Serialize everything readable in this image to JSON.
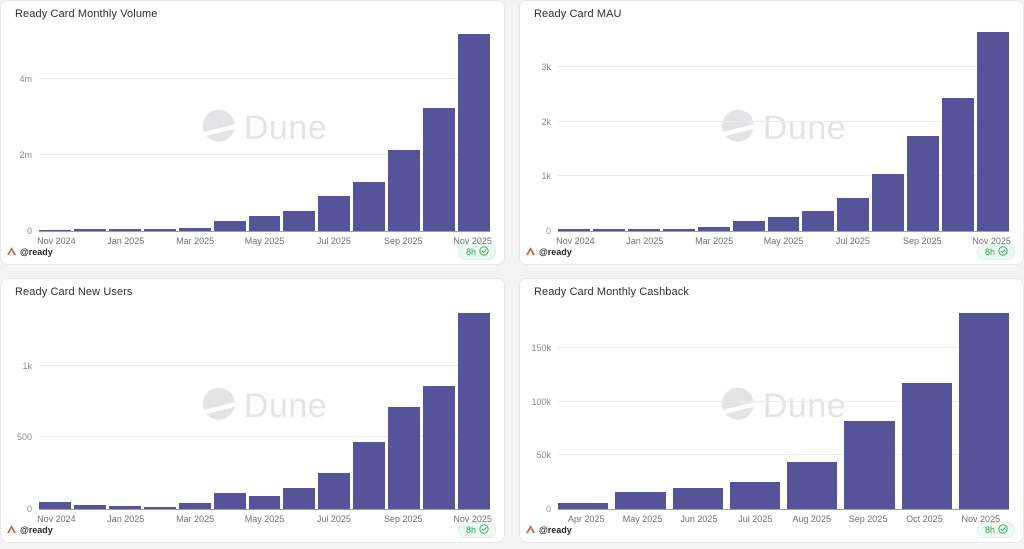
{
  "page": {
    "background": "#f4f4f5",
    "watermark_label": "Dune"
  },
  "colors": {
    "bar": "#56539a",
    "accent_orange": "#db5f45",
    "accent_green": "#2ba55d",
    "watermark_gray": "#e4e4e7"
  },
  "icons": {
    "author": "ready-a-mark",
    "freshness": "check-circle",
    "watermark": "dune-circle-slash"
  },
  "footer": {
    "author": "@ready",
    "updated": "8h"
  },
  "chart_data": [
    {
      "type": "bar",
      "title": "Ready Card Monthly Volume",
      "categories": [
        "Nov 2024",
        "Dec 2024",
        "Jan 2025",
        "Feb 2025",
        "Mar 2025",
        "Apr 2025",
        "May 2025",
        "Jun 2025",
        "Jul 2025",
        "Aug 2025",
        "Sep 2025",
        "Oct 2025",
        "Nov 2025"
      ],
      "values": [
        15000,
        40000,
        40000,
        40000,
        90000,
        260000,
        400000,
        520000,
        910000,
        1300000,
        2130000,
        3250000,
        5180000
      ],
      "ymax": 5400000,
      "ylim": [
        0,
        5400000
      ],
      "y_ticks": [
        {
          "value": 0,
          "label": "0"
        },
        {
          "value": 2000000,
          "label": "2m"
        },
        {
          "value": 4000000,
          "label": "4m"
        }
      ],
      "x_tick_every": 2,
      "xlabel": "",
      "ylabel": "",
      "grid": "horizontal",
      "legend": "none"
    },
    {
      "type": "bar",
      "title": "Ready Card MAU",
      "categories": [
        "Nov 2024",
        "Dec 2024",
        "Jan 2025",
        "Feb 2025",
        "Mar 2025",
        "Apr 2025",
        "May 2025",
        "Jun 2025",
        "Jul 2025",
        "Aug 2025",
        "Sep 2025",
        "Oct 2025",
        "Nov 2025"
      ],
      "values": [
        35,
        45,
        45,
        45,
        80,
        175,
        265,
        375,
        610,
        1050,
        1730,
        2440,
        3640
      ],
      "ymax": 3750,
      "ylim": [
        0,
        3750
      ],
      "y_ticks": [
        {
          "value": 0,
          "label": "0"
        },
        {
          "value": 1000,
          "label": "1k"
        },
        {
          "value": 2000,
          "label": "2k"
        },
        {
          "value": 3000,
          "label": "3k"
        }
      ],
      "x_tick_every": 2,
      "xlabel": "",
      "ylabel": "",
      "grid": "horizontal",
      "legend": "none"
    },
    {
      "type": "bar",
      "title": "Ready Card New Users",
      "categories": [
        "Nov 2024",
        "Dec 2024",
        "Jan 2025",
        "Feb 2025",
        "Mar 2025",
        "Apr 2025",
        "May 2025",
        "Jun 2025",
        "Jul 2025",
        "Aug 2025",
        "Sep 2025",
        "Oct 2025",
        "Nov 2025"
      ],
      "values": [
        50,
        25,
        20,
        15,
        40,
        115,
        90,
        145,
        250,
        470,
        715,
        855,
        1370
      ],
      "ymax": 1430,
      "ylim": [
        0,
        1430
      ],
      "y_ticks": [
        {
          "value": 0,
          "label": "0"
        },
        {
          "value": 500,
          "label": "500"
        },
        {
          "value": 1000,
          "label": "1k"
        }
      ],
      "x_tick_every": 2,
      "xlabel": "",
      "ylabel": "",
      "grid": "horizontal",
      "legend": "none"
    },
    {
      "type": "bar",
      "title": "Ready Card Monthly Cashback",
      "categories": [
        "Apr 2025",
        "May 2025",
        "Jun 2025",
        "Jul 2025",
        "Aug 2025",
        "Sep 2025",
        "Oct 2025",
        "Nov 2025"
      ],
      "values": [
        6000,
        16000,
        20000,
        25000,
        44000,
        82000,
        117000,
        183000
      ],
      "ymax": 191000,
      "ylim": [
        0,
        191000
      ],
      "y_ticks": [
        {
          "value": 0,
          "label": "0"
        },
        {
          "value": 50000,
          "label": "50k"
        },
        {
          "value": 100000,
          "label": "100k"
        },
        {
          "value": 150000,
          "label": "150k"
        }
      ],
      "x_tick_every": 1,
      "xlabel": "",
      "ylabel": "",
      "grid": "horizontal",
      "legend": "none"
    }
  ]
}
